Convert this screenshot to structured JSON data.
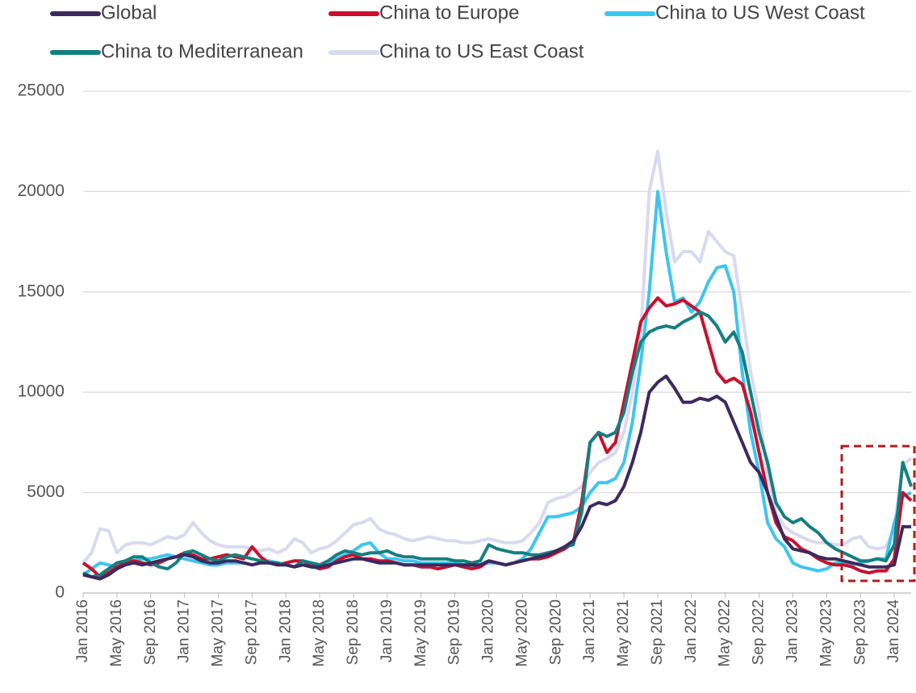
{
  "chart_data": {
    "type": "line",
    "categories": [
      "Jan 2016",
      null,
      null,
      null,
      "May 2016",
      null,
      null,
      null,
      "Sep 2016",
      null,
      null,
      null,
      "Jan 2017",
      null,
      null,
      null,
      "May 2017",
      null,
      null,
      null,
      "Sep 2017",
      null,
      null,
      null,
      "Jan 2018",
      null,
      null,
      null,
      "May 2018",
      null,
      null,
      null,
      "Sep 2018",
      null,
      null,
      null,
      "Jan 2019",
      null,
      null,
      null,
      "May 2019",
      null,
      null,
      null,
      "Sep 2019",
      null,
      null,
      null,
      "Jan 2020",
      null,
      null,
      null,
      "May 2020",
      null,
      null,
      null,
      "Sep 2020",
      null,
      null,
      null,
      "Jan 2021",
      null,
      null,
      null,
      "May 2021",
      null,
      null,
      null,
      "Sep 2021",
      null,
      null,
      null,
      "Jan 2022",
      null,
      null,
      null,
      "May 2022",
      null,
      null,
      null,
      "Sep 2022",
      null,
      null,
      null,
      "Jan 2023",
      null,
      null,
      null,
      "May 2023",
      null,
      null,
      null,
      "Sep 2023",
      null,
      null,
      null,
      "Jan 2024",
      null,
      null
    ],
    "series": [
      {
        "name": "Global",
        "color": "#3b2a5e",
        "values": [
          900,
          800,
          700,
          900,
          1200,
          1400,
          1500,
          1400,
          1500,
          1600,
          1700,
          1800,
          1900,
          1800,
          1600,
          1500,
          1500,
          1600,
          1600,
          1500,
          1400,
          1500,
          1500,
          1400,
          1400,
          1300,
          1400,
          1300,
          1300,
          1400,
          1500,
          1600,
          1700,
          1700,
          1600,
          1500,
          1500,
          1500,
          1400,
          1400,
          1400,
          1400,
          1400,
          1400,
          1400,
          1400,
          1400,
          1400,
          1600,
          1500,
          1400,
          1500,
          1600,
          1700,
          1800,
          1900,
          2100,
          2300,
          2600,
          3300,
          4300,
          4500,
          4400,
          4600,
          5300,
          6500,
          8000,
          10000,
          10500,
          10800,
          10200,
          9500,
          9500,
          9700,
          9600,
          9800,
          9500,
          8500,
          7500,
          6500,
          6000,
          5000,
          3800,
          2700,
          2200,
          2100,
          2000,
          1800,
          1700,
          1700,
          1600,
          1500,
          1400,
          1300,
          1300,
          1300,
          1400,
          3300,
          3300
        ]
      },
      {
        "name": "China to Europe",
        "color": "#c8102e",
        "values": [
          1500,
          1200,
          800,
          1000,
          1300,
          1500,
          1600,
          1500,
          1400,
          1500,
          1700,
          1800,
          2000,
          1900,
          1700,
          1700,
          1800,
          1900,
          1800,
          1700,
          2300,
          1800,
          1500,
          1400,
          1500,
          1600,
          1600,
          1400,
          1200,
          1300,
          1600,
          1800,
          1900,
          1700,
          1700,
          1600,
          1600,
          1500,
          1400,
          1400,
          1300,
          1300,
          1200,
          1300,
          1400,
          1300,
          1200,
          1300,
          1600,
          1500,
          1400,
          1500,
          1600,
          1700,
          1700,
          1800,
          2000,
          2200,
          2500,
          4500,
          7500,
          8000,
          7000,
          7500,
          9500,
          11500,
          13500,
          14200,
          14700,
          14300,
          14400,
          14600,
          14300,
          14000,
          12500,
          11000,
          10500,
          10700,
          10400,
          9000,
          7000,
          5000,
          3500,
          2800,
          2600,
          2200,
          2000,
          1700,
          1500,
          1400,
          1400,
          1300,
          1100,
          1000,
          1100,
          1100,
          1700,
          5000,
          4600
        ]
      },
      {
        "name": "China to US West Coast",
        "color": "#3ec5f0",
        "values": [
          900,
          1200,
          1500,
          1400,
          1300,
          1500,
          1600,
          1700,
          1700,
          1800,
          1900,
          1800,
          1700,
          1600,
          1500,
          1400,
          1400,
          1500,
          1500,
          1500,
          1400,
          1500,
          1600,
          1500,
          1400,
          1300,
          1400,
          1300,
          1200,
          1400,
          1700,
          1900,
          2100,
          2400,
          2500,
          2000,
          1700,
          1700,
          1600,
          1600,
          1500,
          1500,
          1500,
          1500,
          1500,
          1400,
          1300,
          1400,
          1500,
          1500,
          1400,
          1500,
          1700,
          2200,
          3000,
          3800,
          3800,
          3900,
          4000,
          4300,
          5000,
          5500,
          5500,
          5700,
          6500,
          8500,
          11500,
          15000,
          20000,
          17000,
          14500,
          14700,
          14000,
          14500,
          15500,
          16200,
          16300,
          15000,
          11000,
          8000,
          6000,
          3500,
          2700,
          2300,
          1500,
          1300,
          1200,
          1100,
          1200,
          1500,
          1500,
          1400,
          1500,
          1600,
          1700,
          1700,
          3500,
          4800,
          5000
        ]
      },
      {
        "name": "China to Mediterranean",
        "color": "#157f80",
        "values": [
          1000,
          800,
          900,
          1200,
          1500,
          1600,
          1800,
          1800,
          1500,
          1300,
          1200,
          1500,
          2000,
          2100,
          1900,
          1700,
          1600,
          1800,
          1900,
          1800,
          1700,
          1600,
          1500,
          1500,
          1400,
          1300,
          1600,
          1500,
          1400,
          1600,
          1900,
          2100,
          2000,
          1900,
          2000,
          2000,
          2100,
          1900,
          1800,
          1800,
          1700,
          1700,
          1700,
          1700,
          1600,
          1600,
          1500,
          1600,
          2400,
          2200,
          2100,
          2000,
          2000,
          1900,
          1900,
          2000,
          2100,
          2300,
          2400,
          4000,
          7500,
          8000,
          7800,
          8000,
          9000,
          11000,
          12500,
          13000,
          13200,
          13300,
          13200,
          13500,
          13700,
          14000,
          13800,
          13300,
          12500,
          13000,
          12000,
          10000,
          8000,
          6500,
          4500,
          3800,
          3500,
          3700,
          3300,
          3000,
          2500,
          2200,
          2000,
          1800,
          1600,
          1600,
          1700,
          1600,
          2400,
          6500,
          5300
        ]
      },
      {
        "name": "China to US East Coast",
        "color": "#d9d9f0",
        "values": [
          1500,
          2000,
          3200,
          3100,
          2000,
          2400,
          2500,
          2500,
          2400,
          2600,
          2800,
          2700,
          2900,
          3500,
          3000,
          2600,
          2400,
          2300,
          2300,
          2300,
          2200,
          2100,
          2200,
          2000,
          2200,
          2700,
          2500,
          2000,
          2200,
          2300,
          2600,
          3000,
          3400,
          3500,
          3700,
          3200,
          3000,
          2900,
          2700,
          2600,
          2700,
          2800,
          2700,
          2600,
          2600,
          2500,
          2500,
          2600,
          2700,
          2600,
          2500,
          2500,
          2600,
          3000,
          3500,
          4500,
          4700,
          4800,
          5000,
          5300,
          6000,
          6500,
          6700,
          7000,
          8000,
          10000,
          13000,
          20000,
          22000,
          19000,
          16500,
          17000,
          17000,
          16500,
          18000,
          17500,
          17000,
          16800,
          14000,
          11000,
          9000,
          6000,
          4000,
          3300,
          3000,
          2800,
          2600,
          2500,
          2500,
          2400,
          2400,
          2700,
          2800,
          2300,
          2200,
          2300,
          3200,
          6400,
          6700
        ]
      }
    ],
    "ylim": [
      0,
      25000
    ],
    "yticks": [
      0,
      5000,
      10000,
      15000,
      20000,
      25000
    ],
    "grid": true,
    "legend": "top"
  }
}
